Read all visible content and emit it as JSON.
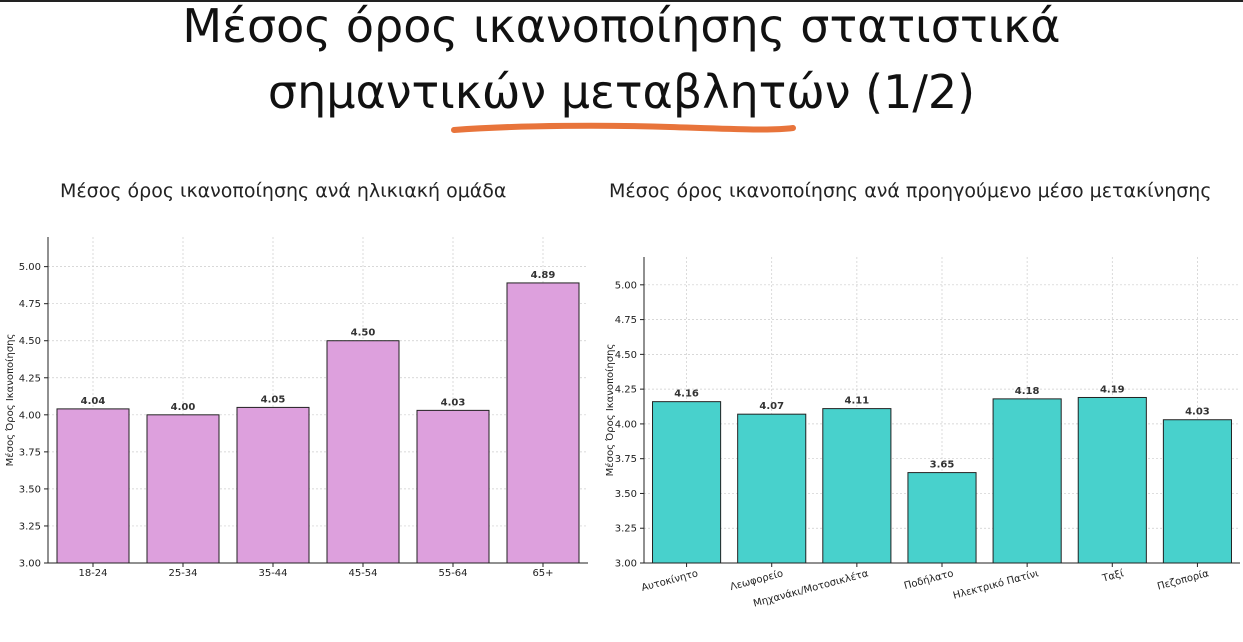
{
  "slide": {
    "title_line1": "Μέσος όρος ικανοποίησης στατιστικά",
    "title_line2": "σημαντικών μεταβλητών (1/2)",
    "accent_color": "#E8743B"
  },
  "chart_data": [
    {
      "type": "bar",
      "title": "Μέσος όρος ικανοποίησης ανά ηλικιακή ομάδα",
      "xlabel": "",
      "ylabel": "Μέσος Όρος Ικανοποίησης",
      "categories": [
        "18-24",
        "25-34",
        "35-44",
        "45-54",
        "55-64",
        "65+"
      ],
      "values": [
        4.04,
        4.0,
        4.05,
        4.5,
        4.03,
        4.89
      ],
      "value_labels": [
        "4.04",
        "4.00",
        "4.05",
        "4.50",
        "4.03",
        "4.89"
      ],
      "ylim": [
        3.0,
        5.2
      ],
      "yticks": [
        "3.00",
        "3.25",
        "3.50",
        "3.75",
        "4.00",
        "4.25",
        "4.50",
        "4.75",
        "5.00"
      ],
      "bar_color": "#DDA0DD",
      "grid": true
    },
    {
      "type": "bar",
      "title": "Μέσος όρος ικανοποίησης ανά προηγούμενο μέσο μετακίνησης",
      "xlabel": "",
      "ylabel": "Μέσος Όρος Ικανοποίησης",
      "categories": [
        "Αυτοκίνητο",
        "Λεωφορείο",
        "Μηχανάκι/Μοτοσικλέτα",
        "Ποδήλατο",
        "Ηλεκτρικό Πατίνι",
        "Ταξί",
        "Πεζοπορία"
      ],
      "values": [
        4.16,
        4.07,
        4.11,
        3.65,
        4.18,
        4.19,
        4.03
      ],
      "value_labels": [
        "4.16",
        "4.07",
        "4.11",
        "3.65",
        "4.18",
        "4.19",
        "4.03"
      ],
      "ylim": [
        3.0,
        5.2
      ],
      "yticks": [
        "3.00",
        "3.25",
        "3.50",
        "3.75",
        "4.00",
        "4.25",
        "4.50",
        "4.75",
        "5.00"
      ],
      "bar_color": "#48D1CC",
      "grid": true
    }
  ]
}
